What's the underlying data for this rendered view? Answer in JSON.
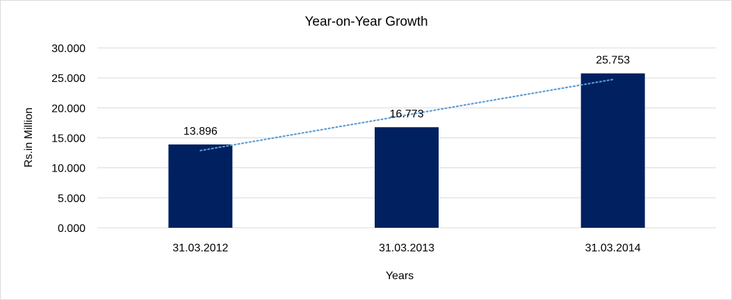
{
  "chart_data": {
    "type": "bar",
    "title": "Year-on-Year Growth",
    "xlabel": "Years",
    "ylabel": "Rs.in Million",
    "categories": [
      "31.03.2012",
      "31.03.2013",
      "31.03.2014"
    ],
    "values": [
      13.896,
      16.773,
      25.753
    ],
    "data_labels": [
      "13.896",
      "16.773",
      "25.753"
    ],
    "ylim": [
      0,
      30
    ],
    "yticks": [
      0,
      5,
      10,
      15,
      20,
      25,
      30
    ],
    "ytick_labels": [
      "0.000",
      "5.000",
      "10.000",
      "15.000",
      "20.000",
      "25.000",
      "30.000"
    ],
    "grid": true,
    "trendline": "linear",
    "colors": {
      "bar": "#002060",
      "trendline": "#5B9BD5",
      "grid": "#d9d9d9"
    }
  }
}
